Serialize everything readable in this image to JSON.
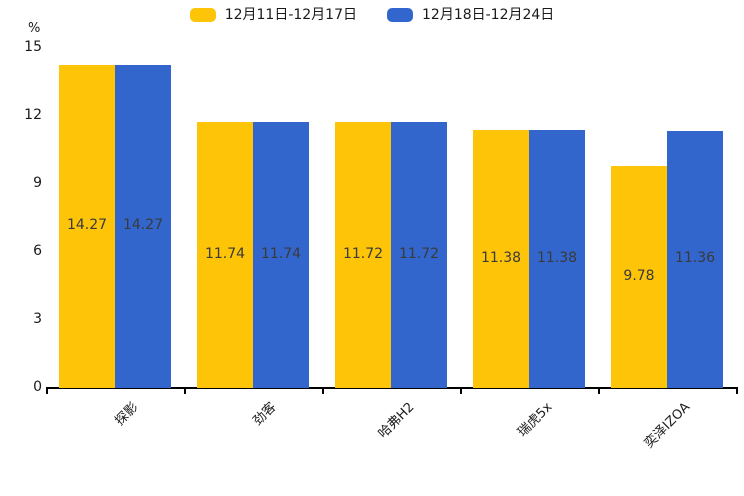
{
  "chart_data": {
    "type": "bar",
    "title": "",
    "categories": [
      "探影",
      "劲客",
      "哈弗H2",
      "瑞虎5x",
      "奕泽IZOA"
    ],
    "series": [
      {
        "name": "12月11日-12月17日",
        "color": "#FDC408",
        "values": [
          14.27,
          11.74,
          11.72,
          11.38,
          9.78
        ]
      },
      {
        "name": "12月18日-12月24日",
        "color": "#3366CC",
        "values": [
          14.27,
          11.74,
          11.72,
          11.38,
          11.36
        ]
      }
    ],
    "xlabel": "",
    "ylabel": "%",
    "yticks": [
      0,
      3,
      6,
      9,
      12,
      15
    ],
    "ylim": [
      0,
      15
    ],
    "grid": false,
    "legend_position": "top",
    "bar_labels_shown": true,
    "bar_label_color": "#3a3a3a",
    "axis_color": "#000000",
    "text_color": "#1a1a1a"
  }
}
